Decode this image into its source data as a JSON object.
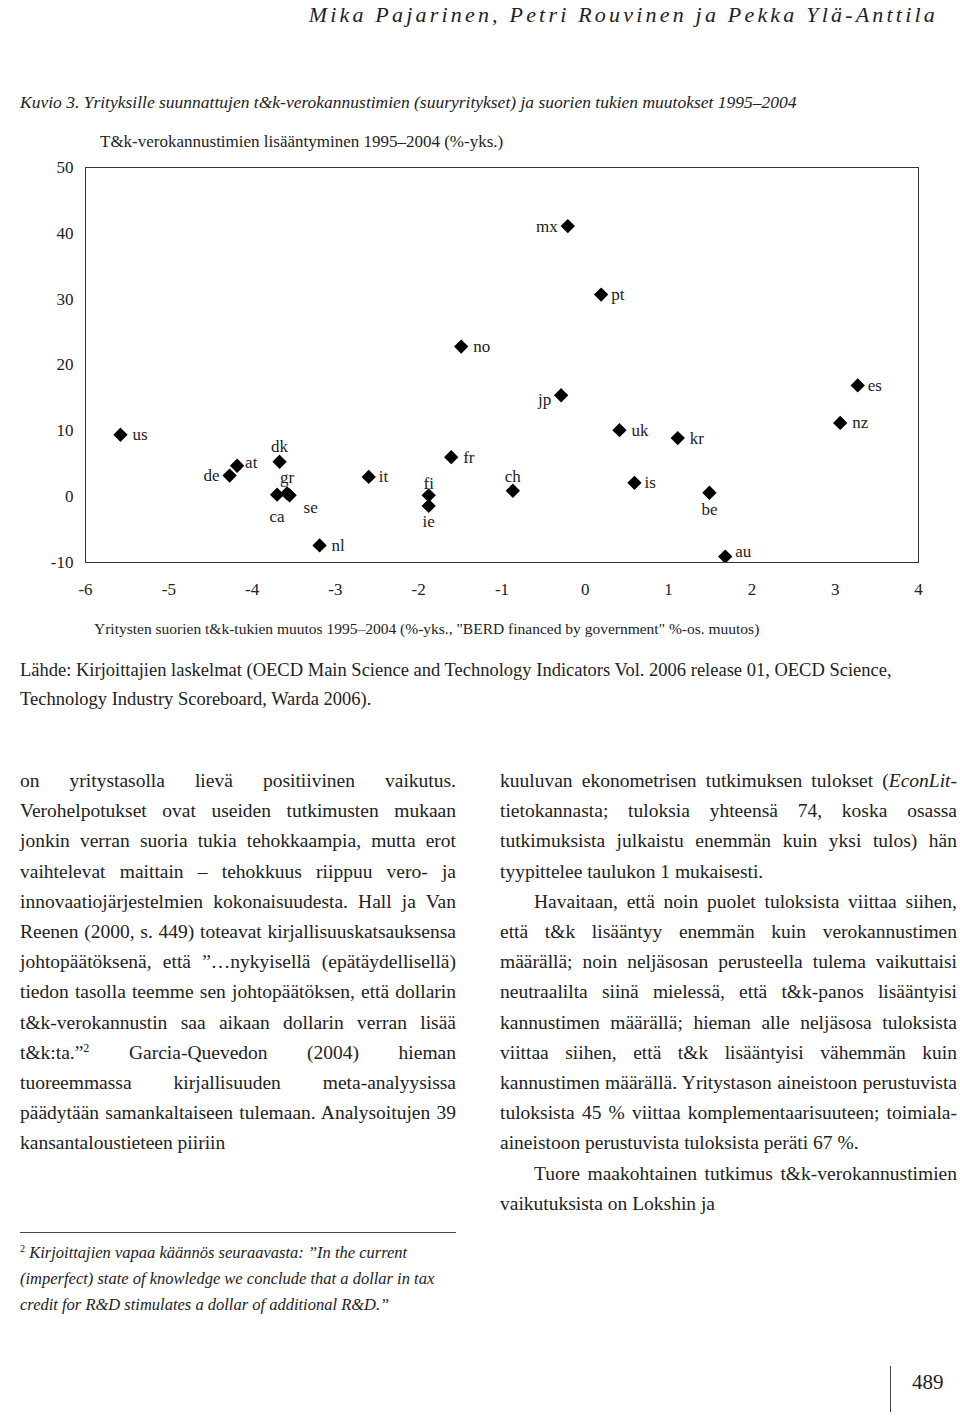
{
  "header": "Mika Pajarinen, Petri Rouvinen ja Pekka Ylä-Anttila",
  "caption": "Kuvio 3. Yrityksille suunnattujen t&k-verokannustimien (suuryritykset) ja suorien tukien muutokset 1995–2004",
  "chart_data": {
    "type": "scatter",
    "y_label": "T&k-verokannustimien lisääntyminen 1995–2004 (%-yks.)",
    "x_label": "Yritysten suorien t&k-tukien muutos 1995–2004 (%-yks., \"BERD financed by government\" %-os. muutos)",
    "labels": [
      "us",
      "de",
      "at",
      "dk",
      "gr",
      "ca",
      "se",
      "nl",
      "it",
      "fi",
      "ie",
      "fr",
      "no",
      "ch",
      "jp",
      "mx",
      "pt",
      "uk",
      "is",
      "kr",
      "be",
      "au",
      "es",
      "nz"
    ],
    "x": [
      -5.58,
      -4.27,
      -4.18,
      -3.67,
      -3.58,
      -3.7,
      -3.55,
      -3.19,
      -2.6,
      -1.88,
      -1.88,
      -1.61,
      -1.49,
      -0.87,
      -0.29,
      -0.21,
      0.19,
      0.41,
      0.59,
      1.11,
      1.49,
      1.68,
      3.27,
      3.06
    ],
    "y": [
      9.4,
      3.2,
      4.7,
      5.3,
      0.5,
      0.3,
      0.2,
      -7.4,
      3.0,
      0.2,
      -1.4,
      6.0,
      22.8,
      0.9,
      15.4,
      41.1,
      30.7,
      10.1,
      2.1,
      8.9,
      0.6,
      -9.1,
      16.9,
      11.2
    ],
    "color": "#000000",
    "marker": "diamond",
    "xlim": [
      -6,
      4
    ],
    "ylim": [
      -10,
      50
    ],
    "xticks": [
      -6,
      -5,
      -4,
      -3,
      -2,
      -1,
      0,
      1,
      2,
      3,
      4
    ],
    "yticks": [
      -10,
      0,
      10,
      20,
      30,
      40,
      50
    ],
    "grid": false
  },
  "source": "Lähde: Kirjoittajien laskelmat (OECD Main Science and Technology Indicators Vol. 2006 release 01, OECD Science, Technology Industry Scoreboard, Warda 2006).",
  "columns": [
    [
      {
        "indent": false,
        "segments": [
          {
            "text": "on yritystasolla lievä positiivinen vaikutus. Verohelpotukset ovat useiden tutkimusten mukaan jonkin verran suoria tukia tehokkaampia, mutta erot vaihtelevat maittain – tehokkuus riippuu vero- ja innovaatiojärjestelmien kokonaisuudesta. Hall ja Van Reenen (2000, s. 449) toteavat kirjallisuuskatsauksensa johtopäätöksenä, että ”…nykyisellä (epätäydellisellä) tiedon tasolla teemme sen johtopäätöksen, että dollarin t&k-verokannustin saa aikaan dollarin verran lisää t&k:ta.”",
            "style": "normal"
          },
          {
            "text": "2",
            "style": "sup"
          },
          {
            "text": " Garcia-Quevedon (2004) hieman tuoreemmassa kirjallisuuden meta-analyysissa päädytään samankaltaiseen tulemaan. Analysoitujen 39 kansantaloustieteen piiriin",
            "style": "normal"
          }
        ]
      }
    ],
    [
      {
        "indent": false,
        "segments": [
          {
            "text": "kuuluvan ekonometrisen tutkimuksen tulokset (",
            "style": "normal"
          },
          {
            "text": "EconLit",
            "style": "italic"
          },
          {
            "text": "-tietokannasta; tuloksia yhteensä 74, koska osassa tutkimuksista julkaistu enemmän kuin yksi tulos) hän tyypittelee taulukon 1 mukaisesti.",
            "style": "normal"
          }
        ]
      },
      {
        "indent": true,
        "segments": [
          {
            "text": "Havaitaan, että noin puolet tuloksista viittaa siihen, että t&k lisääntyy enemmän kuin verokannustimen määrällä; noin neljäsosan perusteella tulema vaikuttaisi neutraalilta siinä mielessä, että t&k-panos lisääntyisi kannustimen määrällä; hieman alle neljäsosa tuloksista viittaa siihen, että t&k lisääntyisi vähemmän kuin kannustimen määrällä. Yritystason aineistoon perustuvista tuloksista 45 % viittaa komplementaarisuuteen; toimiala-aineistoon perustuvista tuloksista peräti 67 %.",
            "style": "normal"
          }
        ]
      },
      {
        "indent": true,
        "segments": [
          {
            "text": "Tuore maakohtainen tutkimus t&k-verokannustimien vaikutuksista on Lokshin ja",
            "style": "normal"
          }
        ]
      }
    ]
  ],
  "footnote": {
    "mark": "2",
    "text": "Kirjoittajien vapaa käännös seuraavasta: ”In the current (imperfect) state of knowledge we conclude that a dollar in tax credit for R&D stimulates a dollar of additional R&D.”"
  },
  "page_number": "489"
}
